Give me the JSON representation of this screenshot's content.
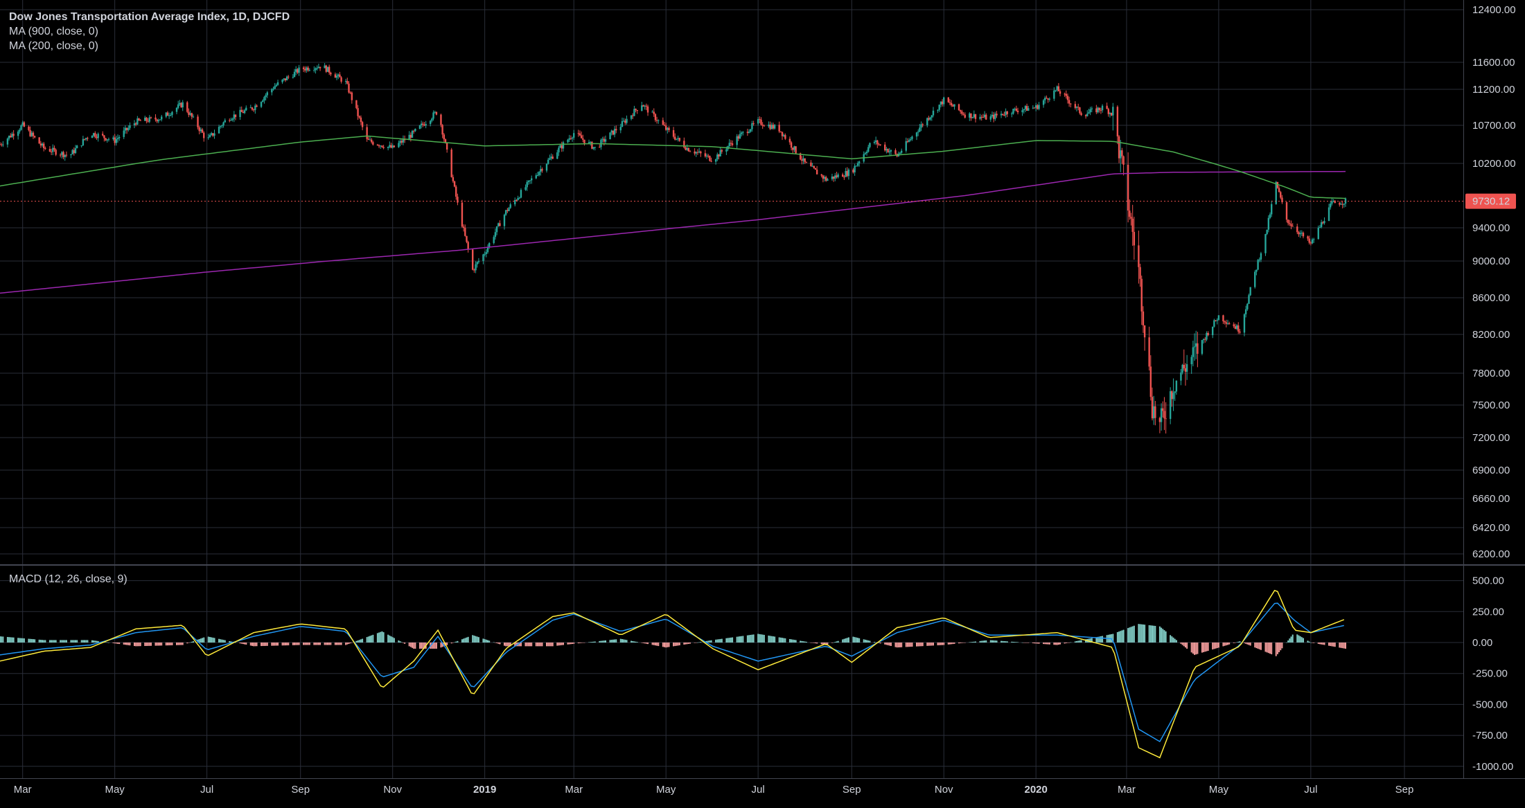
{
  "legend": {
    "title": "Dow Jones Transportation Average Index, 1D, DJCFD",
    "ma1": "MA (900, close, 0)",
    "ma2": "MA (200, close, 0)",
    "macd": "MACD (12, 26, close, 9)"
  },
  "price_badge": "9730.12",
  "colors": {
    "background": "#000000",
    "grid": "#2a2e39",
    "up": "#26a69a",
    "down": "#ef5350",
    "ma900": "#9c27b0",
    "ma200": "#4caf50",
    "macd_line": "#2196f3",
    "signal_line": "#ffeb3b",
    "hist_up": "#80cbc4",
    "hist_down": "#ef9a9a"
  },
  "chart_data": [
    {
      "type": "candlestick",
      "title": "Dow Jones Transportation Average Index, 1D, DJCFD",
      "y_ticks": [
        12400,
        11600,
        11200,
        10700,
        10200,
        9400,
        9000,
        8600,
        8200,
        7800,
        7500,
        7200,
        6900,
        6660,
        6420,
        6200
      ],
      "x_ticks": [
        "Mar",
        "May",
        "Jul",
        "Sep",
        "Nov",
        "2019",
        "Mar",
        "May",
        "Jul",
        "Sep",
        "Nov",
        "2020",
        "Mar",
        "May",
        "Jul",
        "Sep"
      ],
      "x_tick_dates": [
        "2018-03-01",
        "2018-05-01",
        "2018-07-01",
        "2018-09-01",
        "2018-11-01",
        "2019-01-01",
        "2019-03-01",
        "2019-05-01",
        "2019-07-01",
        "2019-09-01",
        "2019-11-01",
        "2020-01-01",
        "2020-03-01",
        "2020-05-01",
        "2020-07-01",
        "2020-09-01"
      ],
      "last_price": 9730.12,
      "series": [
        {
          "name": "DJT close",
          "x": [
            "2018-02-14",
            "2018-03-01",
            "2018-03-15",
            "2018-04-01",
            "2018-04-15",
            "2018-05-01",
            "2018-05-15",
            "2018-06-01",
            "2018-06-15",
            "2018-07-01",
            "2018-07-15",
            "2018-08-01",
            "2018-08-15",
            "2018-09-01",
            "2018-09-15",
            "2018-10-01",
            "2018-10-15",
            "2018-11-01",
            "2018-11-15",
            "2018-12-01",
            "2018-12-15",
            "2018-12-24",
            "2019-01-01",
            "2019-01-15",
            "2019-02-01",
            "2019-02-15",
            "2019-03-01",
            "2019-03-15",
            "2019-04-01",
            "2019-04-15",
            "2019-05-01",
            "2019-05-15",
            "2019-06-01",
            "2019-06-15",
            "2019-07-01",
            "2019-07-15",
            "2019-08-01",
            "2019-08-15",
            "2019-09-01",
            "2019-09-15",
            "2019-10-01",
            "2019-10-15",
            "2019-11-01",
            "2019-11-15",
            "2019-12-01",
            "2019-12-15",
            "2020-01-01",
            "2020-01-15",
            "2020-02-01",
            "2020-02-15",
            "2020-02-21",
            "2020-03-01",
            "2020-03-09",
            "2020-03-18",
            "2020-03-23",
            "2020-04-01",
            "2020-04-15",
            "2020-05-01",
            "2020-05-15",
            "2020-06-01",
            "2020-06-08",
            "2020-06-15",
            "2020-07-01",
            "2020-07-15",
            "2020-07-24"
          ],
          "values": [
            10450,
            10700,
            10400,
            10300,
            10600,
            10500,
            10750,
            10800,
            11000,
            10500,
            10800,
            10950,
            11250,
            11500,
            11550,
            11300,
            10500,
            10400,
            10600,
            10900,
            9600,
            8900,
            9100,
            9600,
            10000,
            10300,
            10600,
            10400,
            10700,
            11000,
            10650,
            10400,
            10250,
            10500,
            10750,
            10650,
            10200,
            10000,
            10100,
            10500,
            10300,
            10650,
            11050,
            10850,
            10800,
            10900,
            10950,
            11200,
            10850,
            10950,
            10850,
            9800,
            8900,
            7500,
            7300,
            7700,
            8000,
            8400,
            8250,
            9300,
            9950,
            9500,
            9200,
            9700,
            9730.12
          ]
        },
        {
          "name": "MA 200",
          "x": [
            "2018-02-14",
            "2018-06-01",
            "2018-09-01",
            "2018-10-15",
            "2019-01-01",
            "2019-03-15",
            "2019-06-01",
            "2019-09-01",
            "2019-11-01",
            "2020-01-01",
            "2020-02-21",
            "2020-04-01",
            "2020-05-15",
            "2020-06-15",
            "2020-07-01",
            "2020-07-24"
          ],
          "values": [
            9920,
            10250,
            10480,
            10560,
            10430,
            10460,
            10420,
            10260,
            10360,
            10500,
            10490,
            10350,
            10100,
            9900,
            9780,
            9765
          ]
        },
        {
          "name": "MA 900",
          "x": [
            "2018-02-14",
            "2018-07-01",
            "2018-12-15",
            "2019-07-01",
            "2019-11-15",
            "2020-02-21",
            "2020-04-01",
            "2020-07-24"
          ],
          "values": [
            8650,
            8880,
            9130,
            9500,
            9800,
            10070,
            10090,
            10100
          ]
        }
      ]
    },
    {
      "type": "line",
      "title": "MACD (12, 26, close, 9)",
      "y_ticks": [
        500,
        250,
        0,
        -250,
        -500,
        -750,
        -1000
      ],
      "series": [
        {
          "name": "MACD",
          "x": [
            "2018-02-14",
            "2018-03-15",
            "2018-04-15",
            "2018-05-15",
            "2018-06-15",
            "2018-07-01",
            "2018-08-01",
            "2018-09-01",
            "2018-10-01",
            "2018-10-25",
            "2018-11-15",
            "2018-12-01",
            "2018-12-24",
            "2019-01-15",
            "2019-02-15",
            "2019-03-01",
            "2019-04-01",
            "2019-05-01",
            "2019-06-01",
            "2019-07-01",
            "2019-08-15",
            "2019-09-01",
            "2019-10-01",
            "2019-11-01",
            "2019-12-01",
            "2020-01-15",
            "2020-02-21",
            "2020-03-09",
            "2020-03-23",
            "2020-04-15",
            "2020-05-15",
            "2020-06-08",
            "2020-06-20",
            "2020-07-01",
            "2020-07-24"
          ],
          "values": [
            -100,
            -50,
            -20,
            80,
            120,
            -60,
            50,
            130,
            90,
            -280,
            -200,
            50,
            -370,
            -80,
            180,
            230,
            90,
            190,
            -30,
            -150,
            -30,
            -110,
            80,
            180,
            60,
            60,
            30,
            -700,
            -800,
            -300,
            -20,
            330,
            180,
            80,
            140
          ]
        },
        {
          "name": "Signal",
          "x": [
            "2018-02-14",
            "2018-03-15",
            "2018-04-15",
            "2018-05-15",
            "2018-06-15",
            "2018-07-01",
            "2018-08-01",
            "2018-09-01",
            "2018-10-01",
            "2018-10-25",
            "2018-11-15",
            "2018-12-01",
            "2018-12-24",
            "2019-01-15",
            "2019-02-15",
            "2019-03-01",
            "2019-04-01",
            "2019-05-01",
            "2019-06-01",
            "2019-07-01",
            "2019-08-15",
            "2019-09-01",
            "2019-10-01",
            "2019-11-01",
            "2019-12-01",
            "2020-01-15",
            "2020-02-21",
            "2020-03-09",
            "2020-03-23",
            "2020-04-15",
            "2020-05-15",
            "2020-06-08",
            "2020-06-20",
            "2020-07-01",
            "2020-07-24"
          ],
          "values": [
            -150,
            -70,
            -40,
            110,
            140,
            -110,
            80,
            150,
            110,
            -370,
            -150,
            100,
            -430,
            -50,
            210,
            240,
            60,
            230,
            -50,
            -220,
            -10,
            -160,
            120,
            200,
            40,
            80,
            -40,
            -850,
            -930,
            -200,
            -30,
            440,
            100,
            80,
            190
          ]
        }
      ]
    }
  ]
}
